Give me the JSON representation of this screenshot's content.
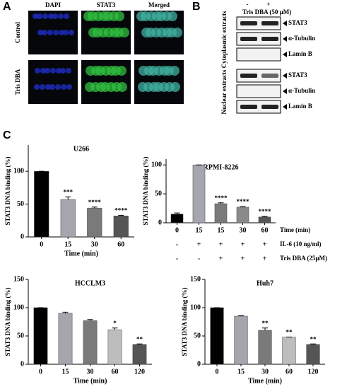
{
  "panel_labels": [
    "A",
    "B",
    "C"
  ],
  "panel_a": {
    "columns": [
      "DAPI",
      "STAT3",
      "Merged"
    ],
    "rows": [
      "Control",
      "Tris DBA"
    ]
  },
  "panel_b": {
    "treatment": "Tris DBA (50 µM)",
    "lanes": [
      "-",
      "+"
    ],
    "groups": [
      {
        "label": "Cytoplasmic extracts",
        "bands": [
          "STAT3",
          "α-Tubulin",
          "Lamin B"
        ]
      },
      {
        "label": "Nuclear extracts",
        "bands": [
          "STAT3",
          "α-Tubulin",
          "Lamin B"
        ]
      }
    ]
  },
  "chart_data": [
    {
      "type": "bar",
      "title": "U266",
      "y_label": "STAT3 DNA binding (%)",
      "x_label": "Time (min)",
      "categories": [
        "0",
        "15",
        "30",
        "60"
      ],
      "values": [
        100,
        57,
        44,
        32
      ],
      "errors": [
        0,
        4,
        1.5,
        1
      ],
      "colors": [
        "#000000",
        "#a5a5ad",
        "#7a7a7a",
        "#555555"
      ],
      "annotations": [
        null,
        "***",
        "****",
        "****"
      ],
      "ylim": [
        0,
        140
      ],
      "yticks": [
        0,
        50,
        100
      ]
    },
    {
      "type": "bar",
      "title": "RPMI-8226",
      "y_label": "STAT3 DNA binding (%)",
      "x_label": "Time (min)",
      "categories": [
        "0",
        "15",
        "15",
        "30",
        "60"
      ],
      "values": [
        15,
        100,
        33,
        27,
        10
      ],
      "errors": [
        2,
        0,
        1.5,
        1,
        1
      ],
      "colors": [
        "#000000",
        "#a5a5ad",
        "#7a7a7a",
        "#8a8a8a",
        "#555555"
      ],
      "annotations": [
        null,
        null,
        "****",
        "****",
        "****"
      ],
      "ylim": [
        0,
        110
      ],
      "yticks": [
        0,
        50,
        100
      ],
      "conditions": [
        {
          "label": "IL-6 (10 ng/ml)",
          "signs": [
            "-",
            "+",
            "+",
            "+",
            "+"
          ]
        },
        {
          "label": "Tris DBA (25µM)",
          "signs": [
            "-",
            "-",
            "+",
            "+",
            "+"
          ]
        }
      ]
    },
    {
      "type": "bar",
      "title": "HCCLM3",
      "y_label": "STAT3 DNA binding (%)",
      "x_label": "Time (min)",
      "categories": [
        "0",
        "15",
        "30",
        "60",
        "120"
      ],
      "values": [
        100,
        90,
        77,
        61,
        35
      ],
      "errors": [
        0,
        2,
        2,
        3,
        1
      ],
      "colors": [
        "#000000",
        "#a5a5ad",
        "#7a7a7a",
        "#bdbdbd",
        "#555555"
      ],
      "annotations": [
        null,
        null,
        null,
        "*",
        "**"
      ],
      "ylim": [
        0,
        150
      ],
      "yticks": [
        0,
        50,
        100,
        150
      ]
    },
    {
      "type": "bar",
      "title": "Huh7",
      "y_label": "STAT3 DNA binding (%)",
      "x_label": "Time (min)",
      "categories": [
        "0",
        "15",
        "30",
        "60",
        "120"
      ],
      "values": [
        100,
        85,
        60,
        48,
        35
      ],
      "errors": [
        0,
        1,
        4,
        0,
        1
      ],
      "colors": [
        "#000000",
        "#a5a5ad",
        "#7a7a7a",
        "#bdbdbd",
        "#555555"
      ],
      "annotations": [
        null,
        null,
        "**",
        "**",
        "**"
      ],
      "ylim": [
        0,
        150
      ],
      "yticks": [
        0,
        50,
        100,
        150
      ]
    }
  ]
}
